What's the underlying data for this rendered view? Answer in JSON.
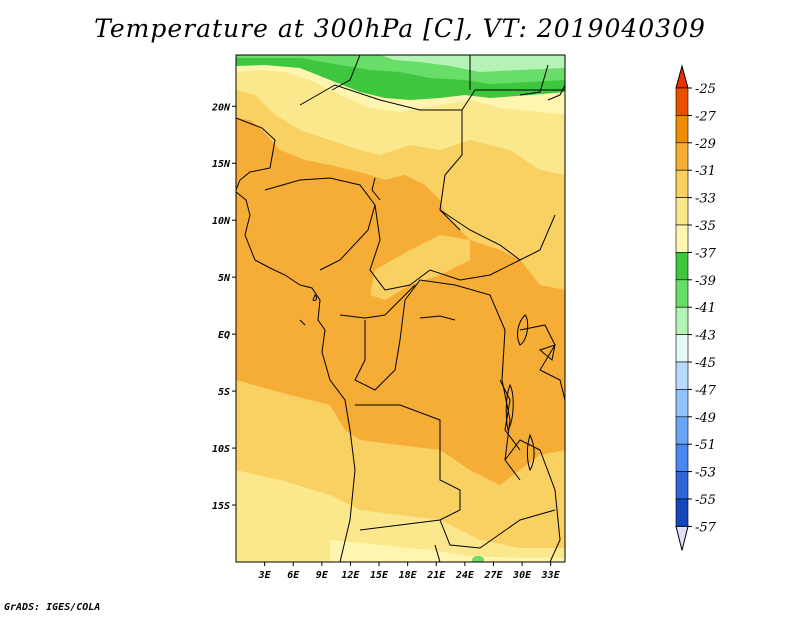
{
  "title": "Temperature at 300hPa [C], VT: 2019040309",
  "credit": "GrADS: IGES/COLA",
  "map": {
    "lon_range": [
      0,
      34.5
    ],
    "lat_range": [
      -20,
      24.5
    ],
    "lat_ticks": [
      {
        "value": 20,
        "label": "20N"
      },
      {
        "value": 15,
        "label": "15N"
      },
      {
        "value": 10,
        "label": "10N"
      },
      {
        "value": 5,
        "label": "5N"
      },
      {
        "value": 0,
        "label": "EQ"
      },
      {
        "value": -5,
        "label": "5S"
      },
      {
        "value": -10,
        "label": "10S"
      },
      {
        "value": -15,
        "label": "15S"
      }
    ],
    "lon_ticks": [
      {
        "value": 3,
        "label": "3E"
      },
      {
        "value": 6,
        "label": "6E"
      },
      {
        "value": 9,
        "label": "9E"
      },
      {
        "value": 12,
        "label": "12E"
      },
      {
        "value": 15,
        "label": "15E"
      },
      {
        "value": 18,
        "label": "18E"
      },
      {
        "value": 21,
        "label": "21E"
      },
      {
        "value": 24,
        "label": "24E"
      },
      {
        "value": 27,
        "label": "27E"
      },
      {
        "value": 30,
        "label": "30E"
      },
      {
        "value": 33,
        "label": "33E"
      }
    ]
  },
  "colorbar": {
    "levels": [
      "-25",
      "-27",
      "-29",
      "-31",
      "-33",
      "-35",
      "-37",
      "-39",
      "-41",
      "-43",
      "-45",
      "-47",
      "-49",
      "-51",
      "-53",
      "-55",
      "-57"
    ],
    "colors": [
      "#e85000",
      "#f08c00",
      "#f5ad35",
      "#f9d062",
      "#fbe88c",
      "#fdf5b0",
      "#3ec63e",
      "#68dd68",
      "#b5f2b5",
      "#e5f8f8",
      "#bad9ff",
      "#92c2fb",
      "#6aa5f5",
      "#4a87ee",
      "#2e67da",
      "#1446bc",
      "#0b1f78"
    ],
    "top_arrow_color": "#e83000",
    "bottom_arrow_color": "#e0e0f8"
  }
}
